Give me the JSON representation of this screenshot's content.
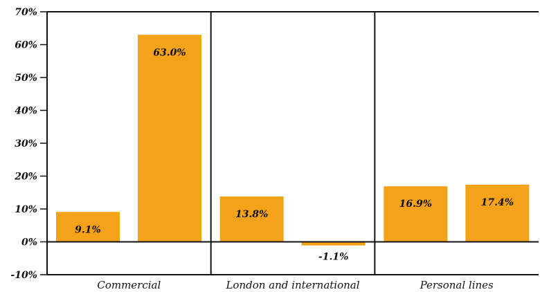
{
  "chart_data": {
    "type": "bar",
    "title": "",
    "xlabel": "",
    "ylabel": "",
    "ylim": [
      -10,
      70
    ],
    "yticks": [
      70,
      60,
      50,
      40,
      30,
      20,
      10,
      0,
      -10
    ],
    "ytick_labels": [
      "70%",
      "60%",
      "50%",
      "40%",
      "30%",
      "20%",
      "10%",
      "0%",
      "-10%"
    ],
    "grid": false,
    "bar_color": "#f5a21b",
    "groups": [
      {
        "name": "Commercial",
        "values": [
          9.1,
          63.0
        ],
        "labels": [
          "9.1%",
          "63.0%"
        ]
      },
      {
        "name": "London and international",
        "values": [
          13.8,
          -1.1
        ],
        "labels": [
          "13.8%",
          "-1.1%"
        ]
      },
      {
        "name": "Personal lines",
        "values": [
          16.9,
          17.4
        ],
        "labels": [
          "16.9%",
          "17.4%"
        ]
      }
    ]
  }
}
